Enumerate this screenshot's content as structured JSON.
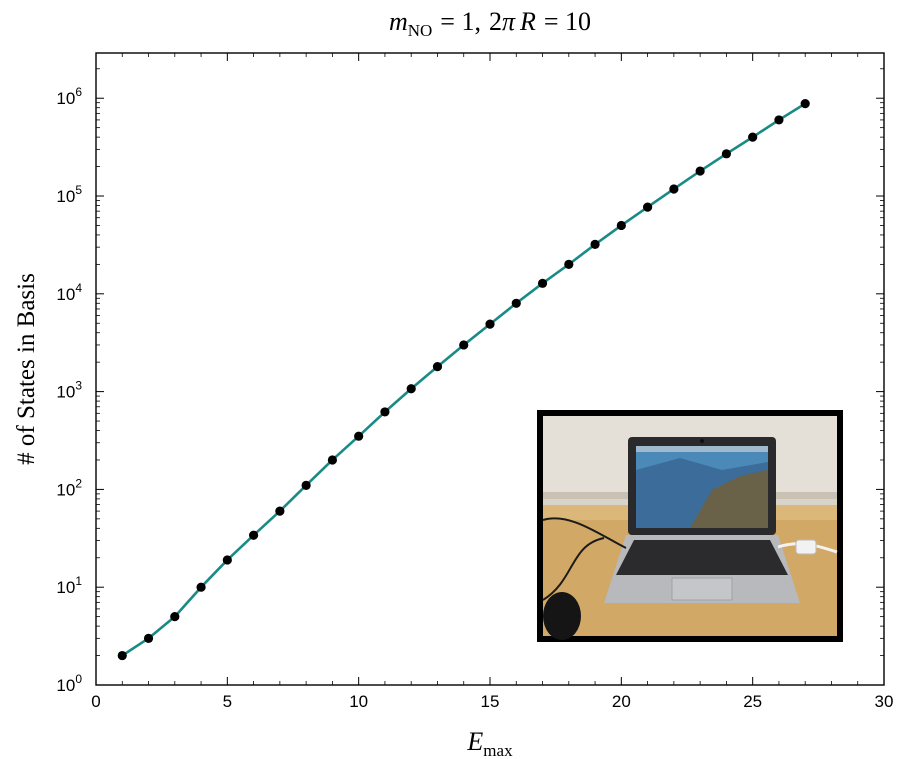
{
  "chart_data": {
    "type": "line",
    "title": {
      "m_symbol": "m",
      "m_subscript": "NO",
      "m_value": "= 1,",
      "r_prefix": "2",
      "r_pi": "π",
      "r_symbol": "R",
      "r_value": "= 10"
    },
    "xlabel": {
      "symbol": "E",
      "subscript": "max"
    },
    "ylabel": "# of States in Basis",
    "xlim": [
      0,
      30
    ],
    "ylim": [
      1,
      2900000
    ],
    "yscale": "log",
    "x_ticks": [
      "0",
      "5",
      "10",
      "15",
      "20",
      "25",
      "30"
    ],
    "y_ticks": [
      {
        "base": "10",
        "exp": "0"
      },
      {
        "base": "10",
        "exp": "1"
      },
      {
        "base": "10",
        "exp": "2"
      },
      {
        "base": "10",
        "exp": "3"
      },
      {
        "base": "10",
        "exp": "4"
      },
      {
        "base": "10",
        "exp": "5"
      },
      {
        "base": "10",
        "exp": "6"
      }
    ],
    "series": [
      {
        "line_color": "#1a8a86",
        "marker_color": "#000000",
        "x": [
          1,
          2,
          3,
          4,
          5,
          6,
          7,
          8,
          9,
          10,
          11,
          12,
          13,
          14,
          15,
          16,
          17,
          18,
          19,
          20,
          21,
          22,
          23,
          24,
          25,
          26,
          27
        ],
        "y": [
          2,
          3,
          5,
          10,
          19,
          34,
          60,
          110,
          200,
          350,
          620,
          1070,
          1800,
          3000,
          4900,
          8000,
          12800,
          20000,
          32000,
          50000,
          77000,
          118000,
          180000,
          270000,
          400000,
          600000,
          880000
        ]
      }
    ],
    "grid": false,
    "inset": {
      "kind": "photo",
      "position": "bottom-right",
      "icon": "laptop-photo"
    }
  }
}
